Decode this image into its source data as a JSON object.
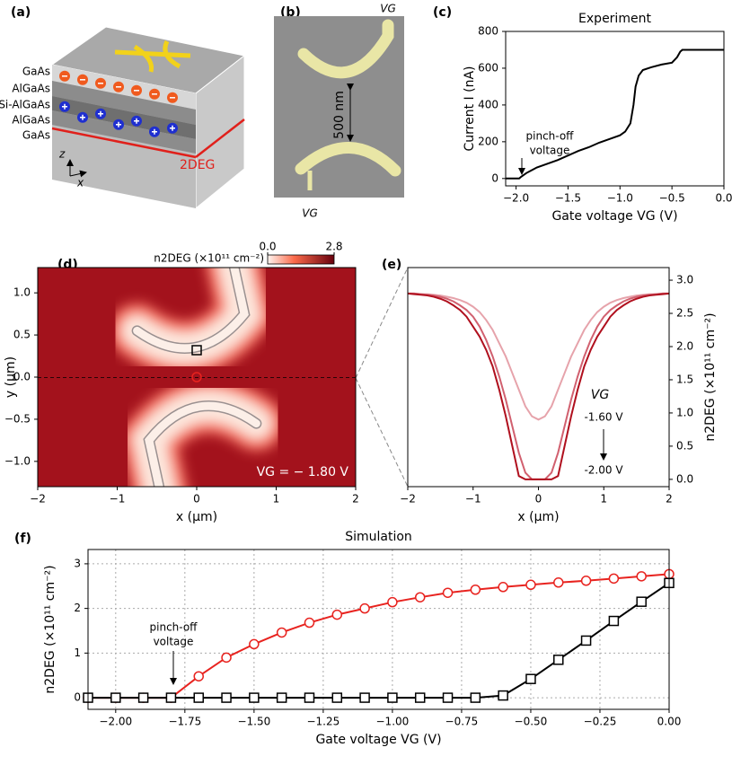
{
  "panel_labels": [
    "(a)",
    "(b)",
    "(c)",
    "(d)",
    "(e)",
    "(f)"
  ],
  "diagram_a": {
    "layers": [
      "GaAs",
      "AlGaAs",
      "Si-AlGaAs",
      "AlGaAs",
      "GaAs"
    ],
    "channel": "2DEG",
    "axes": [
      "z",
      "x"
    ]
  },
  "image_b": {
    "gate_top": "VG",
    "gate_bottom": "VG",
    "gap": "500 nm"
  },
  "chart_data": [
    {
      "type": "line",
      "title": "Experiment",
      "xlabel": "Gate voltage VG (V)",
      "ylabel": "Current I (nA)",
      "x": [
        -2.1,
        -1.97,
        -1.95,
        -1.9,
        -1.85,
        -1.8,
        -1.7,
        -1.6,
        -1.5,
        -1.4,
        -1.3,
        -1.2,
        -1.1,
        -1.0,
        -0.95,
        -0.9,
        -0.87,
        -0.85,
        -0.82,
        -0.78,
        -0.7,
        -0.6,
        -0.5,
        -0.45,
        -0.42,
        -0.4,
        -0.3,
        0
      ],
      "values": [
        0,
        0,
        10,
        30,
        45,
        60,
        80,
        100,
        125,
        150,
        170,
        195,
        215,
        235,
        255,
        300,
        400,
        500,
        560,
        590,
        605,
        620,
        630,
        660,
        690,
        700,
        700,
        700
      ],
      "color": "#000000",
      "xlim": [
        -2.1,
        0
      ],
      "ylim": [
        -40,
        800
      ],
      "xticks": [
        {
          "value": -2,
          "label": "−2.0"
        },
        {
          "value": -1.5,
          "label": "−1.5"
        },
        {
          "value": -1,
          "label": "−1.0"
        },
        {
          "value": -0.5,
          "label": "−0.5"
        },
        {
          "value": 0,
          "label": "0.0"
        }
      ],
      "yticks": [
        0,
        200,
        400,
        600,
        800
      ],
      "annotation": [
        "pinch-off",
        "voltage"
      ]
    },
    {
      "type": "heatmap",
      "xlabel": "x (μm)",
      "ylabel": "y (μm)",
      "annotation": "VG = − 1.80 V",
      "xlim": [
        -2,
        2
      ],
      "ylim": [
        -1.3,
        1.3
      ],
      "xticks": [
        {
          "value": -2,
          "label": "−2"
        },
        {
          "value": -1,
          "label": "−1"
        },
        0,
        1,
        2
      ],
      "yticks": [
        {
          "value": 1,
          "label": "1.0"
        },
        {
          "value": 0.5,
          "label": "0.5"
        },
        {
          "value": 0,
          "label": "0.0"
        },
        {
          "value": -0.5,
          "label": "−0.5"
        },
        {
          "value": -1,
          "label": "−1.0"
        }
      ],
      "colorbar": {
        "label": "n2DEG (×10¹¹ cm⁻²)",
        "lim": [
          0,
          2.8
        ],
        "ticks": [
          {
            "value": 0,
            "label": "0.0"
          },
          {
            "value": 2.8,
            "label": "2.8"
          }
        ]
      }
    },
    {
      "type": "line",
      "xlabel": "x (μm)",
      "y2label": "n2DEG (×10¹¹ cm⁻²)",
      "legend_title": "VG",
      "x": [
        -2,
        -1.9,
        -1.8,
        -1.7,
        -1.6,
        -1.5,
        -1.4,
        -1.3,
        -1.2,
        -1.1,
        -1,
        -0.9,
        -0.8,
        -0.7,
        -0.6,
        -0.5,
        -0.4,
        -0.3,
        -0.2,
        -0.1,
        0,
        0.1,
        0.2,
        0.3,
        0.4,
        0.5,
        0.6,
        0.7,
        0.8,
        0.9,
        1,
        1.1,
        1.2,
        1.3,
        1.4,
        1.5,
        1.6,
        1.7,
        1.8,
        1.9,
        2
      ],
      "series": [
        {
          "name": "-1.60 V",
          "color": "#e6a3ab",
          "axis": "y2",
          "values": [
            2.8,
            2.8,
            2.79,
            2.79,
            2.78,
            2.77,
            2.75,
            2.73,
            2.7,
            2.66,
            2.6,
            2.52,
            2.4,
            2.25,
            2.05,
            1.85,
            1.6,
            1.35,
            1.1,
            0.95,
            0.9,
            0.95,
            1.1,
            1.35,
            1.6,
            1.85,
            2.05,
            2.25,
            2.4,
            2.52,
            2.6,
            2.66,
            2.7,
            2.73,
            2.75,
            2.77,
            2.78,
            2.79,
            2.79,
            2.8,
            2.8
          ]
        },
        {
          "color": "#d1606f",
          "axis": "y2",
          "values": [
            2.8,
            2.8,
            2.79,
            2.78,
            2.77,
            2.75,
            2.72,
            2.68,
            2.62,
            2.55,
            2.45,
            2.3,
            2.1,
            1.85,
            1.55,
            1.2,
            0.8,
            0.4,
            0.1,
            0,
            0,
            0,
            0.1,
            0.4,
            0.8,
            1.2,
            1.55,
            1.85,
            2.1,
            2.3,
            2.45,
            2.55,
            2.62,
            2.68,
            2.72,
            2.75,
            2.77,
            2.78,
            2.79,
            2.8,
            2.8
          ]
        },
        {
          "name": "-2.00 V",
          "color": "#b0101e",
          "axis": "y2",
          "values": [
            2.8,
            2.79,
            2.78,
            2.77,
            2.75,
            2.72,
            2.68,
            2.62,
            2.55,
            2.45,
            2.3,
            2.15,
            1.95,
            1.7,
            1.35,
            0.95,
            0.5,
            0.05,
            0,
            0,
            0,
            0,
            0,
            0.05,
            0.5,
            0.95,
            1.35,
            1.7,
            1.95,
            2.15,
            2.3,
            2.45,
            2.55,
            2.62,
            2.68,
            2.72,
            2.75,
            2.77,
            2.78,
            2.79,
            2.8
          ]
        }
      ],
      "xlim": [
        -2,
        2
      ],
      "xticks": [
        {
          "value": -2,
          "label": "−2"
        },
        {
          "value": -1,
          "label": "−1"
        },
        0,
        1,
        2
      ],
      "y2lim": [
        -0.11,
        3.19
      ],
      "y2ticks": [
        {
          "value": 0,
          "label": "0.0"
        },
        {
          "value": 0.5,
          "label": "0.5"
        },
        {
          "value": 1,
          "label": "1.0"
        },
        {
          "value": 1.5,
          "label": "1.5"
        },
        {
          "value": 2,
          "label": "2.0"
        },
        {
          "value": 2.5,
          "label": "2.5"
        },
        {
          "value": 3,
          "label": "3.0"
        }
      ]
    },
    {
      "type": "line",
      "title": "Simulation",
      "xlabel": "Gate voltage VG (V)",
      "ylabel": "n2DEG (×10¹¹ cm⁻²)",
      "x": [
        -2.1,
        -2.0,
        -1.9,
        -1.8,
        -1.7,
        -1.6,
        -1.5,
        -1.4,
        -1.3,
        -1.2,
        -1.1,
        -1.0,
        -0.9,
        -0.8,
        -0.7,
        -0.6,
        -0.5,
        -0.4,
        -0.3,
        -0.2,
        -0.1,
        0
      ],
      "series": [
        {
          "color": "#e8231f",
          "marker": "circle",
          "values": [
            0,
            0,
            0,
            0,
            0.48,
            0.9,
            1.2,
            1.46,
            1.68,
            1.86,
            2.0,
            2.14,
            2.25,
            2.35,
            2.42,
            2.48,
            2.53,
            2.58,
            2.62,
            2.67,
            2.72,
            2.77
          ]
        },
        {
          "color": "#000000",
          "marker": "square",
          "values": [
            0,
            0,
            0,
            0,
            0,
            0,
            0,
            0,
            0,
            0,
            0,
            0,
            0,
            0,
            0,
            0.05,
            0.42,
            0.85,
            1.28,
            1.72,
            2.15,
            2.57
          ]
        }
      ],
      "xlim": [
        -2.1,
        0
      ],
      "ylim": [
        -0.26,
        3.32
      ],
      "xticks": [
        {
          "value": -2,
          "label": "−2.00"
        },
        {
          "value": -1.75,
          "label": "−1.75"
        },
        {
          "value": -1.5,
          "label": "−1.50"
        },
        {
          "value": -1.25,
          "label": "−1.25"
        },
        {
          "value": -1,
          "label": "−1.00"
        },
        {
          "value": -0.75,
          "label": "−0.75"
        },
        {
          "value": -0.5,
          "label": "−0.50"
        },
        {
          "value": -0.25,
          "label": "−0.25"
        },
        {
          "value": 0,
          "label": "0.00"
        }
      ],
      "yticks": [
        0,
        1,
        2,
        3
      ],
      "grid": true,
      "annotation": [
        "pinch-off",
        "voltage"
      ]
    }
  ]
}
